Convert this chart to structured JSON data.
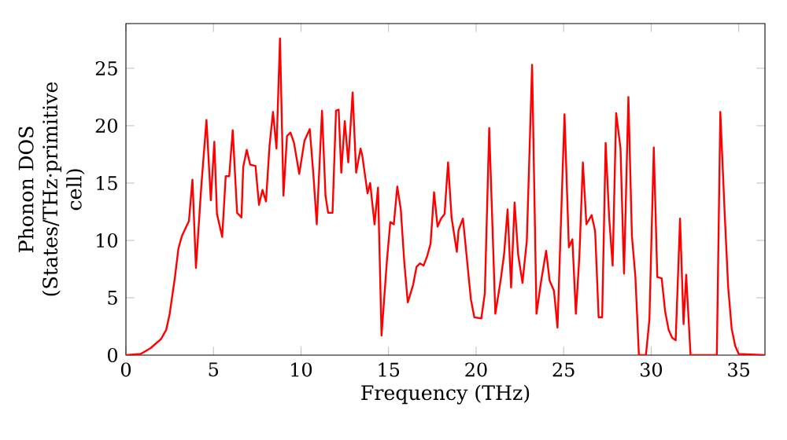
{
  "chart_data": {
    "type": "line",
    "xlabel": "Frequency (THz)",
    "ylabel": "Phonon DOS (States/THz·primitive cell)",
    "xlim": [
      0,
      36.5
    ],
    "ylim": [
      0,
      28.9
    ],
    "xticks": [
      0,
      5,
      10,
      15,
      20,
      25,
      30,
      35
    ],
    "yticks": [
      0,
      5,
      10,
      15,
      20,
      25
    ],
    "marker": "none",
    "line_style": "solid",
    "series": [
      {
        "color": "#ff0000",
        "x": [
          0,
          0.84,
          1.4,
          2.0,
          2.3,
          2.5,
          2.8,
          3.0,
          3.2,
          3.6,
          3.8,
          4.0,
          4.3,
          4.6,
          4.85,
          5.05,
          5.2,
          5.5,
          5.7,
          5.9,
          6.1,
          6.35,
          6.6,
          6.7,
          6.9,
          7.1,
          7.4,
          7.6,
          7.8,
          8.0,
          8.2,
          8.4,
          8.6,
          8.8,
          9.0,
          9.2,
          9.4,
          9.6,
          9.9,
          10.2,
          10.5,
          10.7,
          10.9,
          11.2,
          11.4,
          11.55,
          11.8,
          12.0,
          12.15,
          12.3,
          12.5,
          12.7,
          12.95,
          13.15,
          13.4,
          13.5,
          13.8,
          13.95,
          14.2,
          14.4,
          14.6,
          14.9,
          15.1,
          15.3,
          15.5,
          15.7,
          15.9,
          16.1,
          16.4,
          16.6,
          16.8,
          17.0,
          17.2,
          17.4,
          17.6,
          17.8,
          18.0,
          18.2,
          18.4,
          18.6,
          18.9,
          19.0,
          19.25,
          19.45,
          19.7,
          19.9,
          20.3,
          20.5,
          20.75,
          21.1,
          21.4,
          21.6,
          21.8,
          22.0,
          22.2,
          22.4,
          22.65,
          22.9,
          23.2,
          23.45,
          23.7,
          24.0,
          24.2,
          24.45,
          24.65,
          25.05,
          25.3,
          25.5,
          25.7,
          25.9,
          26.1,
          26.3,
          26.6,
          26.8,
          27.0,
          27.2,
          27.4,
          27.6,
          27.8,
          28.0,
          28.25,
          28.45,
          28.7,
          28.9,
          29.1,
          29.3,
          29.7,
          29.9,
          30.15,
          30.35,
          30.6,
          30.8,
          31.0,
          31.2,
          31.4,
          31.65,
          31.85,
          32.0,
          32.25,
          33.75,
          33.95,
          34.2,
          34.4,
          34.6,
          34.8,
          35.0,
          36.5
        ],
        "values": [
          0,
          0.1,
          0.6,
          1.4,
          2.2,
          3.6,
          6.8,
          9.3,
          10.4,
          11.7,
          15.3,
          7.6,
          14.6,
          20.5,
          13.5,
          18.6,
          12.3,
          10.3,
          15.6,
          15.6,
          19.6,
          12.4,
          12.0,
          16.4,
          17.9,
          16.6,
          16.5,
          13.1,
          14.4,
          13.4,
          18.2,
          21.2,
          18.0,
          27.6,
          13.9,
          19.1,
          19.4,
          18.5,
          15.8,
          18.7,
          19.7,
          15.9,
          11.4,
          21.3,
          13.9,
          12.4,
          12.4,
          21.3,
          21.4,
          15.9,
          20.4,
          16.8,
          22.9,
          15.9,
          18.0,
          17.4,
          14.1,
          15.0,
          11.4,
          14.6,
          1.7,
          8.1,
          11.6,
          11.4,
          14.7,
          12.7,
          8.1,
          4.6,
          6.1,
          7.7,
          8.0,
          7.8,
          8.6,
          9.7,
          14.2,
          11.2,
          11.9,
          12.3,
          16.8,
          12.0,
          9.0,
          10.9,
          11.9,
          8.8,
          4.9,
          3.3,
          3.2,
          5.4,
          19.8,
          3.6,
          6.5,
          8.8,
          12.7,
          5.9,
          13.3,
          8.8,
          6.3,
          10.0,
          25.3,
          3.6,
          6.3,
          9.1,
          6.5,
          5.6,
          2.4,
          21.0,
          9.4,
          10.1,
          3.6,
          8.6,
          16.8,
          11.4,
          12.2,
          10.8,
          3.3,
          3.3,
          18.5,
          12.0,
          7.8,
          21.1,
          18.0,
          7.1,
          22.5,
          10.4,
          6.8,
          0,
          0,
          3.1,
          18.1,
          6.8,
          6.7,
          3.8,
          2.2,
          1.5,
          1.3,
          11.9,
          2.7,
          7.0,
          0,
          0,
          21.2,
          12.3,
          5.9,
          2.3,
          0.8,
          0.1,
          0
        ]
      }
    ]
  }
}
